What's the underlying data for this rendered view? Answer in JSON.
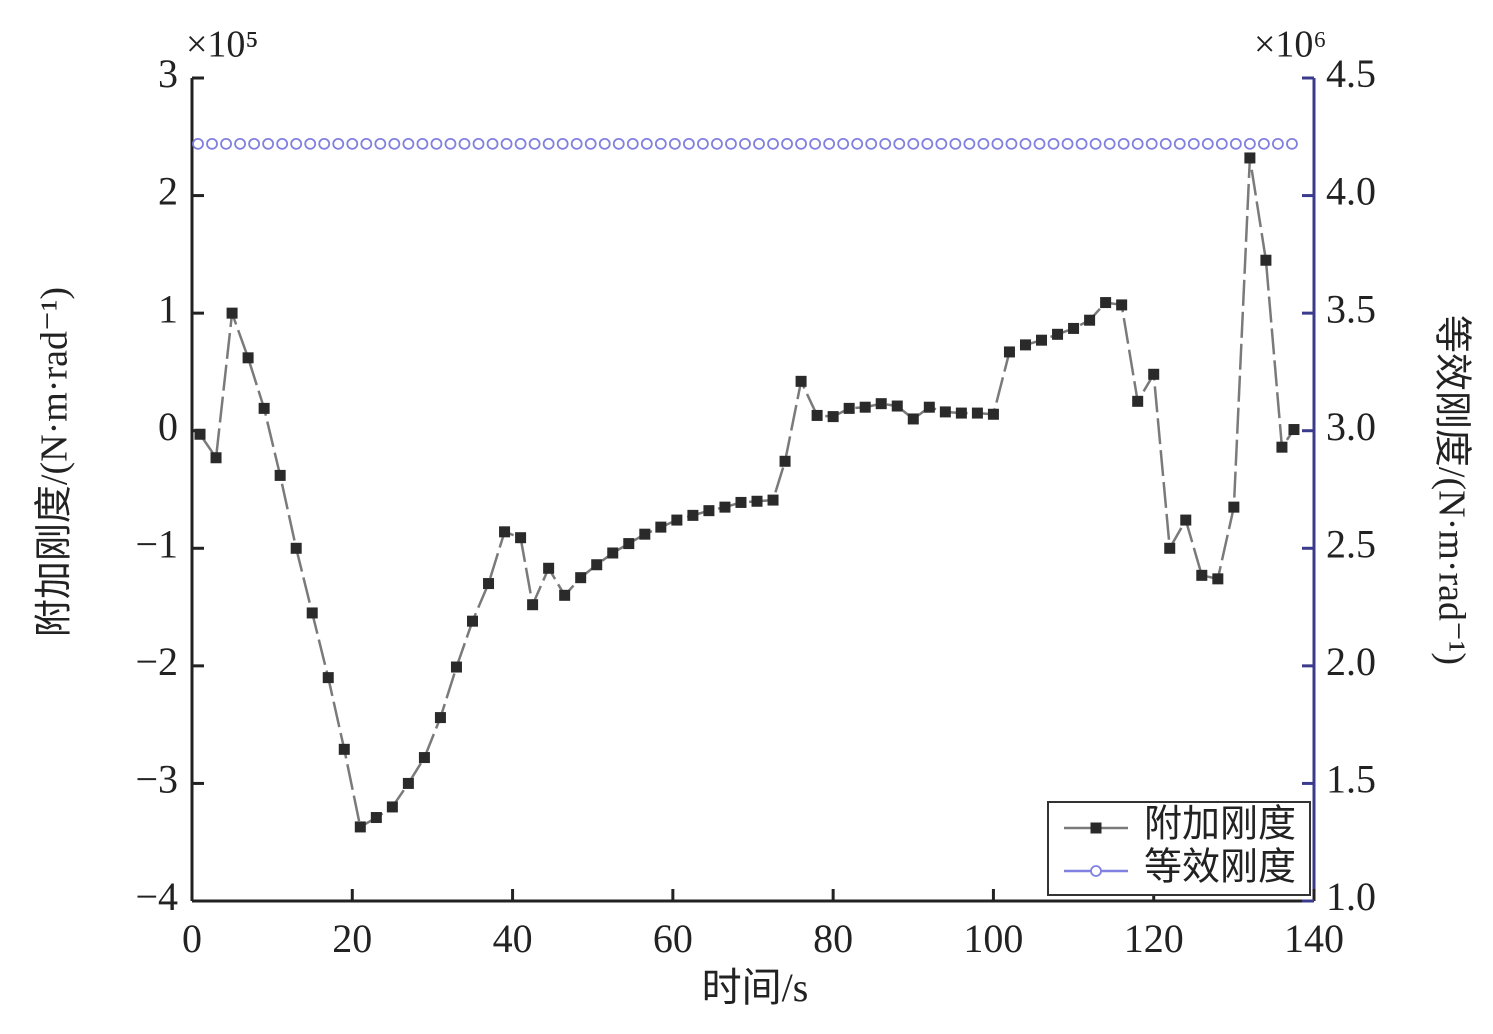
{
  "chart_data": {
    "type": "line",
    "xlabel": "时间/s",
    "ylabel": "附加刚度/(N·m·rad⁻¹)",
    "y2label": "等效刚度/(N·m·rad⁻¹)",
    "ymultiplier": "×10⁵",
    "y2multiplier": "×10⁶",
    "xlim": [
      0,
      140
    ],
    "xticks": [
      0,
      20,
      40,
      60,
      80,
      100,
      120,
      140
    ],
    "ylim": [
      -4,
      3
    ],
    "yticks": [
      {
        "value": -4,
        "label": "−4"
      },
      {
        "value": -3,
        "label": "−3"
      },
      {
        "value": -2,
        "label": "−2"
      },
      {
        "value": -1,
        "label": "−1"
      },
      0,
      1,
      2,
      3
    ],
    "y2lim": [
      1,
      4.5
    ],
    "y2ticks": [
      {
        "value": 1,
        "label": "1.0"
      },
      1.5,
      {
        "value": 2,
        "label": "2.0"
      },
      2.5,
      {
        "value": 3,
        "label": "3.0"
      },
      3.5,
      {
        "value": 4,
        "label": "4.0"
      },
      4.5
    ],
    "legend": "lower right",
    "series": [
      {
        "name": "附加刚度",
        "color": "#2a2a2a",
        "line_color": "#7a7a7a",
        "marker": "square",
        "x": [
          1,
          3,
          5,
          7,
          9,
          11,
          13,
          15,
          17,
          19,
          21,
          23,
          25,
          27,
          29,
          31,
          33,
          35,
          37,
          39,
          41,
          42.5,
          44.5,
          46.5,
          48.5,
          50.5,
          52.5,
          54.5,
          56.5,
          58.5,
          60.5,
          62.5,
          64.5,
          66.5,
          68.5,
          70.5,
          72.5,
          74,
          76,
          78,
          80,
          82,
          84,
          86,
          88,
          90,
          92,
          94,
          96,
          98,
          100,
          102,
          104,
          106,
          108,
          110,
          112,
          114,
          116,
          118,
          120,
          122,
          124,
          126,
          128,
          130,
          132,
          134,
          136,
          137.5
        ],
        "values": [
          -0.03,
          -0.23,
          1.0,
          0.62,
          0.19,
          -0.38,
          -1.0,
          -1.55,
          -2.1,
          -2.71,
          -3.37,
          -3.29,
          -3.2,
          -3.0,
          -2.78,
          -2.44,
          -2.01,
          -1.62,
          -1.3,
          -0.86,
          -0.91,
          -1.48,
          -1.17,
          -1.4,
          -1.25,
          -1.14,
          -1.04,
          -0.96,
          -0.88,
          -0.82,
          -0.76,
          -0.72,
          -0.68,
          -0.65,
          -0.61,
          -0.6,
          -0.59,
          -0.26,
          0.42,
          0.13,
          0.12,
          0.19,
          0.2,
          0.23,
          0.21,
          0.1,
          0.2,
          0.16,
          0.15,
          0.15,
          0.14,
          0.67,
          0.73,
          0.77,
          0.82,
          0.87,
          0.94,
          1.09,
          1.07,
          0.25,
          0.48,
          -1.0,
          -0.76,
          -1.23,
          -1.26,
          -0.65,
          2.32,
          1.45,
          -0.14,
          0.01
        ]
      },
      {
        "name": "等效刚度",
        "color": "#8080e0",
        "marker": "circle",
        "axis": "y2",
        "x": [
          0.75,
          2.5,
          4.25,
          6,
          7.75,
          9.5,
          11.25,
          13,
          14.75,
          16.5,
          18.25,
          20,
          21.75,
          23.5,
          25.25,
          27,
          28.75,
          30.5,
          32.25,
          34,
          35.75,
          37.5,
          39.25,
          41,
          42.75,
          44.5,
          46.25,
          48,
          49.75,
          51.5,
          53.25,
          55,
          56.75,
          58.5,
          60.25,
          62,
          63.75,
          65.5,
          67.25,
          69,
          70.75,
          72.5,
          74.25,
          76,
          77.75,
          79.5,
          81.25,
          83,
          84.75,
          86.5,
          88.25,
          90,
          91.75,
          93.5,
          95.25,
          97,
          98.75,
          100.5,
          102.25,
          104,
          105.75,
          107.5,
          109.25,
          111,
          112.75,
          114.5,
          116.25,
          118,
          119.75,
          121.5,
          123.25,
          125,
          126.75,
          128.5,
          130.25,
          132,
          133.75,
          135.5,
          137.25
        ],
        "values": [
          4.22,
          4.22,
          4.22,
          4.22,
          4.22,
          4.22,
          4.22,
          4.22,
          4.22,
          4.22,
          4.22,
          4.22,
          4.22,
          4.22,
          4.22,
          4.22,
          4.22,
          4.22,
          4.22,
          4.22,
          4.22,
          4.22,
          4.22,
          4.22,
          4.22,
          4.22,
          4.22,
          4.22,
          4.22,
          4.22,
          4.22,
          4.22,
          4.22,
          4.22,
          4.22,
          4.22,
          4.22,
          4.22,
          4.22,
          4.22,
          4.22,
          4.22,
          4.22,
          4.22,
          4.22,
          4.22,
          4.22,
          4.22,
          4.22,
          4.22,
          4.22,
          4.22,
          4.22,
          4.22,
          4.22,
          4.22,
          4.22,
          4.22,
          4.22,
          4.22,
          4.22,
          4.22,
          4.22,
          4.22,
          4.22,
          4.22,
          4.22,
          4.22,
          4.22,
          4.22,
          4.22,
          4.22,
          4.22,
          4.22,
          4.22,
          4.22,
          4.22,
          4.22,
          4.22
        ]
      }
    ]
  }
}
